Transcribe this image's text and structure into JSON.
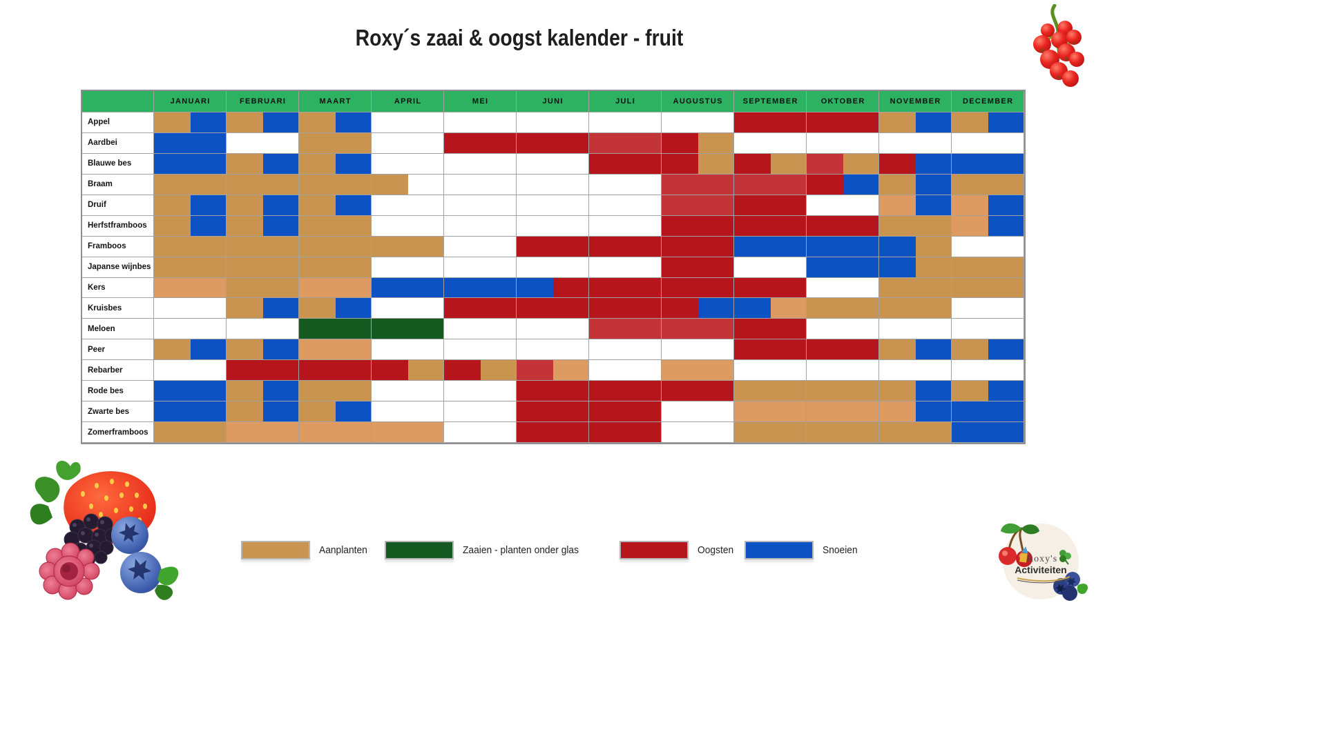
{
  "title": "Roxy´s zaai & oogst kalender - fruit",
  "chart_data": {
    "type": "heatmap",
    "title": "Roxy´s zaai & oogst kalender - fruit",
    "x_categories": [
      "JANUARI",
      "FEBRUARI",
      "MAART",
      "APRIL",
      "MEI",
      "JUNI",
      "JULI",
      "AUGUSTUS",
      "SEPTEMBER",
      "OKTOBER",
      "NOVEMBER",
      "DECEMBER"
    ],
    "x_granularity": "2 cells per month (first half / second half)",
    "y_categories": [
      "Appel",
      "Aardbei",
      "Blauwe bes",
      "Braam",
      "Druif",
      "Herfstframboos",
      "Framboos",
      "Japanse wijnbes",
      "Kers",
      "Kruisbes",
      "Meloen",
      "Peer",
      "Rebarber",
      "Rode bes",
      "Zwarte bes",
      "Zomerframboos"
    ],
    "codes": {
      "P": "Aanplanten",
      "P2": "Aanplanten (lichtere tint)",
      "G": "Zaaien - planten onder glas",
      "O": "Oogsten",
      "O2": "Oogsten (lichtere tint)",
      "S": "Snoeien",
      ".": "leeg"
    },
    "palette": {
      "aanplanten": "#c9944f",
      "aanplanten_light": "#dd9b61",
      "zaaien": "#155a21",
      "oogsten": "#b6151b",
      "oogsten_light": "#c23438",
      "snoeien": "#0c52c2",
      "header_green": "#2cb261",
      "grid_line": "#a2a2a4",
      "empty": "#ffffff"
    },
    "rows": [
      {
        "label": "Appel",
        "cells": "P,S,P,S,P,S,.,.,.,.,.,.,.,.,.,.,O,O,O,O,P,S,P,S"
      },
      {
        "label": "Aardbei",
        "cells": "S,S,.,.,P,P,.,.,O,O,O,O,O2,O2,O,P,.,.,.,.,.,.,.,."
      },
      {
        "label": "Blauwe bes",
        "cells": "S,S,P,S,P,S,.,.,.,.,.,.,O,O,O,P,O,P,O2,P,O,S,S,S"
      },
      {
        "label": "Braam",
        "cells": "P,P,P,P,P,P,P,.,.,.,.,.,.,.,O2,O2,O2,O2,O,S,P,S,P,P"
      },
      {
        "label": "Druif",
        "cells": "P,S,P,S,P,S,.,.,.,.,.,.,.,.,O2,O2,O,O,.,.,P2,S,P2,S"
      },
      {
        "label": "Herfstframboos",
        "cells": "P,S,P,S,P,P,.,.,.,.,.,.,.,.,O,O,O,O,O,O,P,P,P2,S"
      },
      {
        "label": "Framboos",
        "cells": "P,P,P,P,P,P,P,P,.,.,O,O,O,O,O,O,S,S,S,S,S,P,.,."
      },
      {
        "label": "Japanse wijnbes",
        "cells": "P,P,P,P,P,P,.,.,.,.,.,.,.,.,O,O,.,.,S,S,S,P,P,P"
      },
      {
        "label": "Kers",
        "cells": "P2,P2,P,P,P2,P2,S,S,S,S,S,O,O,O,O,O,O,O,.,.,P,P,P,P"
      },
      {
        "label": "Kruisbes",
        "cells": ".,.,P,S,P,S,.,.,O,O,O,O,O,O,O,S,S,P2,P,P,P,P,.,."
      },
      {
        "label": "Meloen",
        "cells": ".,.,.,.,G,G,G,G,.,.,.,.,O2,O2,O2,O2,O,O,.,.,.,.,.,."
      },
      {
        "label": "Peer",
        "cells": "P,S,P,S,P2,P2,.,.,.,.,.,.,.,.,.,.,O,O,O,O,P,S,P,S"
      },
      {
        "label": "Rebarber",
        "cells": ".,.,O,O,O,O,O,P,O,P,O2,P2,.,.,P2,P2,.,.,.,.,.,.,.,."
      },
      {
        "label": "Rode bes",
        "cells": "S,S,P,S,P,P,.,.,.,.,O,O,O,O,O,O,P,P,P,P,P,S,P,S"
      },
      {
        "label": "Zwarte bes",
        "cells": "S,S,P,S,P,S,.,.,.,.,O,O,O,O,.,.,P2,P2,P2,P2,P2,S,S,S"
      },
      {
        "label": "Zomerframboos",
        "cells": "P,P,P2,P2,P2,P2,P2,P2,.,.,O,O,O,O,.,.,P,P,P,P,P,P,S,S"
      }
    ],
    "legend": [
      {
        "code": "P",
        "label": "Aanplanten"
      },
      {
        "code": "G",
        "label": "Zaaien - planten onder glas"
      },
      {
        "code": "O",
        "label": "Oogsten"
      },
      {
        "code": "S",
        "label": "Snoeien"
      }
    ],
    "legend_position": "bottom",
    "grid": true
  },
  "logo": {
    "line1": "Roxy's",
    "line2": "Activiteiten"
  }
}
